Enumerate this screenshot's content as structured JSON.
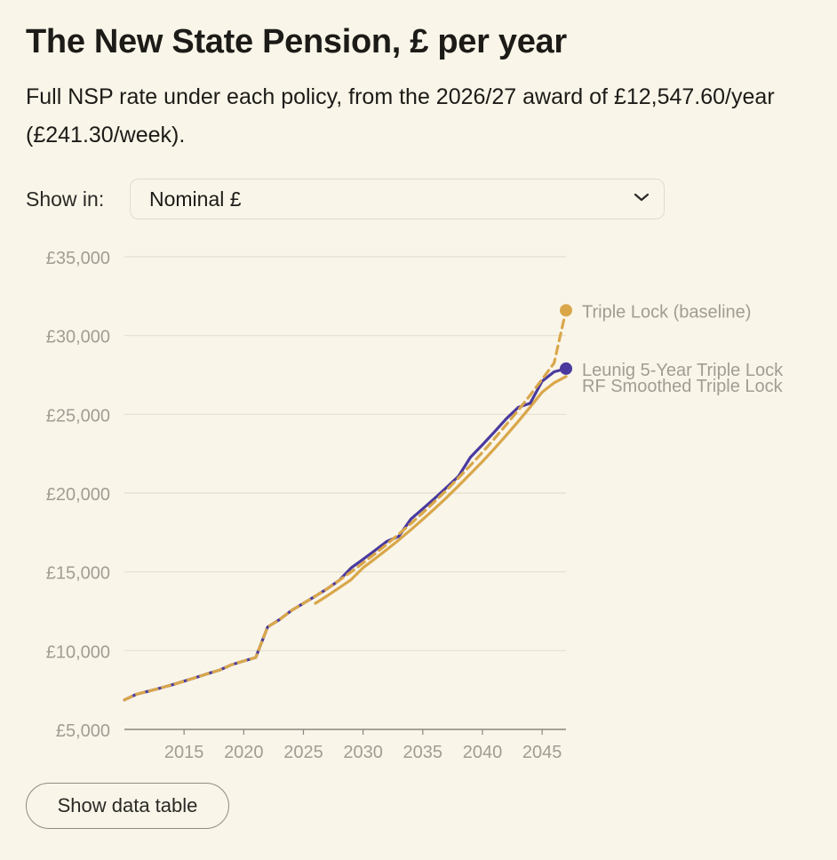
{
  "header": {
    "title": "The New State Pension, £ per year",
    "subtitle": "Full NSP rate under each policy, from the 2026/27 award of £12,547.60/year (£241.30/week)."
  },
  "controls": {
    "show_in_label": "Show in:",
    "unit_select": {
      "selected": "Nominal £"
    }
  },
  "table_button": "Show data table",
  "colors": {
    "background": "#f9f5e9",
    "triple_lock": "#d9a74a",
    "leunig": "#4a3a9e",
    "grid": "#e4dfcf",
    "axis_text": "#a19d93"
  },
  "chart_data": {
    "type": "line",
    "title": "The New State Pension, £ per year",
    "xlabel": "",
    "ylabel": "",
    "xlim": [
      2010,
      2047
    ],
    "ylim": [
      5000,
      35000
    ],
    "x_ticks": [
      2015,
      2020,
      2025,
      2030,
      2035,
      2040,
      2045
    ],
    "y_ticks": [
      5000,
      10000,
      15000,
      20000,
      25000,
      30000,
      35000
    ],
    "y_tick_labels": [
      "£5,000",
      "£10,000",
      "£15,000",
      "£20,000",
      "£25,000",
      "£30,000",
      "£35,000"
    ],
    "x_tick_labels": [
      "2015",
      "2020",
      "2025",
      "2030",
      "2035",
      "2040",
      "2045"
    ],
    "grid": "horizontal",
    "legend": "end-of-line labels",
    "series": [
      {
        "name": "Triple Lock (baseline)",
        "color": "#d9a74a",
        "style": "dashed",
        "end_marker": true,
        "x": [
          2010,
          2011,
          2012,
          2013,
          2014,
          2015,
          2016,
          2017,
          2018,
          2019,
          2020,
          2021,
          2022,
          2023,
          2024,
          2025,
          2026,
          2027,
          2028,
          2029,
          2030,
          2031,
          2032,
          2033,
          2034,
          2035,
          2036,
          2037,
          2038,
          2039,
          2040,
          2041,
          2042,
          2043,
          2044,
          2045,
          2046,
          2047
        ],
        "values": [
          6870,
          7230,
          7420,
          7620,
          7830,
          8060,
          8300,
          8540,
          8770,
          9110,
          9340,
          9560,
          11500,
          11970,
          12550,
          13000,
          13460,
          13930,
          14460,
          15000,
          15570,
          16150,
          16760,
          17400,
          18060,
          18750,
          19460,
          20200,
          20970,
          21760,
          22590,
          23450,
          24340,
          25260,
          26220,
          27220,
          28250,
          31600
        ]
      },
      {
        "name": "Leunig 5-Year Triple Lock",
        "color": "#4a3a9e",
        "style": "solid",
        "end_marker": true,
        "x": [
          2010,
          2011,
          2012,
          2013,
          2014,
          2015,
          2016,
          2017,
          2018,
          2019,
          2020,
          2021,
          2022,
          2023,
          2024,
          2025,
          2026,
          2027,
          2028,
          2029,
          2030,
          2031,
          2032,
          2033,
          2034,
          2035,
          2036,
          2037,
          2038,
          2039,
          2040,
          2041,
          2042,
          2043,
          2044,
          2045,
          2046,
          2047
        ],
        "values": [
          6870,
          7230,
          7420,
          7620,
          7830,
          8060,
          8300,
          8540,
          8770,
          9110,
          9340,
          9560,
          11500,
          11970,
          12550,
          13000,
          13460,
          13930,
          14460,
          15250,
          15800,
          16360,
          16940,
          17260,
          18350,
          19000,
          19670,
          20360,
          21070,
          22280,
          23070,
          23880,
          24720,
          25440,
          25700,
          27100,
          27700,
          27900
        ]
      },
      {
        "name": "RF Smoothed Triple Lock",
        "color": "#d9a74a",
        "style": "solid",
        "end_marker": false,
        "x": [
          2026,
          2027,
          2028,
          2029,
          2030,
          2031,
          2032,
          2033,
          2034,
          2035,
          2036,
          2037,
          2038,
          2039,
          2040,
          2041,
          2042,
          2043,
          2044,
          2045,
          2046,
          2047
        ],
        "values": [
          13000,
          13480,
          13990,
          14510,
          15260,
          15830,
          16420,
          17030,
          17670,
          18330,
          19010,
          19720,
          20460,
          21230,
          22000,
          22820,
          23670,
          24550,
          25460,
          26400,
          27000,
          27400
        ]
      }
    ]
  }
}
